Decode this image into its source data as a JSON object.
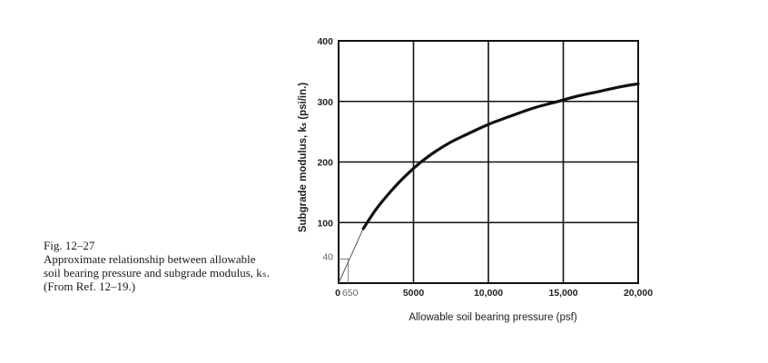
{
  "caption": {
    "figure_number": "Fig. 12–27",
    "text": "Approximate relationship between allowable soil bearing pressure and subgrade modulus, kₛ. (From Ref. 12–19.)"
  },
  "chart_data": {
    "type": "line",
    "xlabel": "Allowable soil bearing pressure (psf)",
    "ylabel": "Subgrade modulus, kₛ (psi/in.)",
    "xlim": [
      0,
      20000
    ],
    "ylim": [
      0,
      400
    ],
    "grid": true,
    "x_ticks": [
      {
        "value": 0,
        "label": "0"
      },
      {
        "value": 5000,
        "label": "5000"
      },
      {
        "value": 10000,
        "label": "10,000"
      },
      {
        "value": 15000,
        "label": "15,000"
      },
      {
        "value": 20000,
        "label": "20,000"
      }
    ],
    "y_ticks": [
      {
        "value": 100,
        "label": "100"
      },
      {
        "value": 200,
        "label": "200"
      },
      {
        "value": 300,
        "label": "300"
      },
      {
        "value": 400,
        "label": "400"
      }
    ],
    "extra_x_tick": {
      "value": 650,
      "label": "650"
    },
    "extra_y_tick": {
      "value": 40,
      "label": "40"
    },
    "series": [
      {
        "x": [
          1650,
          2500,
          3500,
          4500,
          5500,
          6500,
          7500,
          8500,
          10000,
          11500,
          13000,
          14500,
          16000,
          17500,
          19000,
          20000
        ],
        "y": [
          90,
          122,
          152,
          178,
          200,
          218,
          233,
          245,
          262,
          276,
          289,
          299,
          309,
          317,
          325,
          329
        ]
      }
    ],
    "extension": {
      "x": [
        0,
        1650
      ],
      "y": [
        0,
        90
      ]
    },
    "reference_box": {
      "x": 650,
      "y": 40
    }
  }
}
